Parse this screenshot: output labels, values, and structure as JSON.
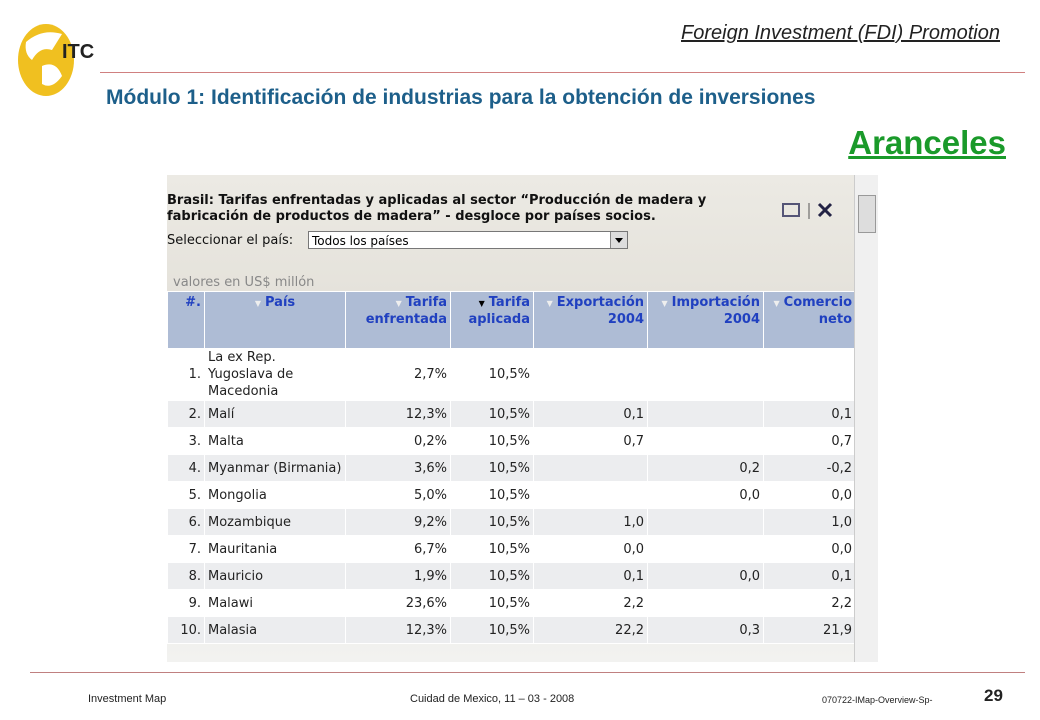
{
  "logo": {
    "text": "ITC"
  },
  "header": {
    "title": "Foreign Investment (FDI) Promotion",
    "module": "Módulo 1: Identificación de industrias para la obtención de inversiones",
    "subtitle": "Aranceles"
  },
  "panel": {
    "title": "Brasil: Tarifas enfrentadas y aplicadas al sector “Producción de madera y fabricación de productos de madera” - desgloce por países socios.",
    "select_label": "Seleccionar el país:",
    "select_value": "Todos los países",
    "units": "valores en US$ millón"
  },
  "table": {
    "headers": [
      "#.",
      "País",
      "Tarifa enfrentada",
      "Tarifa aplicada",
      "Exportación 2004",
      "Importación 2004",
      "Comercio neto"
    ],
    "rows": [
      [
        "1.",
        "La ex Rep. Yugoslava de Macedonia",
        "2,7%",
        "10,5%",
        null,
        null,
        null
      ],
      [
        "2.",
        "Malí",
        "12,3%",
        "10,5%",
        "0,1",
        null,
        "0,1"
      ],
      [
        "3.",
        "Malta",
        "0,2%",
        "10,5%",
        "0,7",
        null,
        "0,7"
      ],
      [
        "4.",
        "Myanmar (Birmania)",
        "3,6%",
        "10,5%",
        null,
        "0,2",
        "-0,2"
      ],
      [
        "5.",
        "Mongolia",
        "5,0%",
        "10,5%",
        null,
        "0,0",
        "0,0"
      ],
      [
        "6.",
        "Mozambique",
        "9,2%",
        "10,5%",
        "1,0",
        null,
        "1,0"
      ],
      [
        "7.",
        "Mauritania",
        "6,7%",
        "10,5%",
        "0,0",
        null,
        "0,0"
      ],
      [
        "8.",
        "Mauricio",
        "1,9%",
        "10,5%",
        "0,1",
        "0,0",
        "0,1"
      ],
      [
        "9.",
        "Malawi",
        "23,6%",
        "10,5%",
        "2,2",
        null,
        "2,2"
      ],
      [
        "10.",
        "Malasia",
        "12,3%",
        "10,5%",
        "22,2",
        "0,3",
        "21,9"
      ]
    ]
  },
  "footer": {
    "left": "Investment Map",
    "center": "Cuidad de Mexico, 11 – 03 - 2008",
    "code": "070722-IMap-Overview-Sp-",
    "page": "29"
  }
}
